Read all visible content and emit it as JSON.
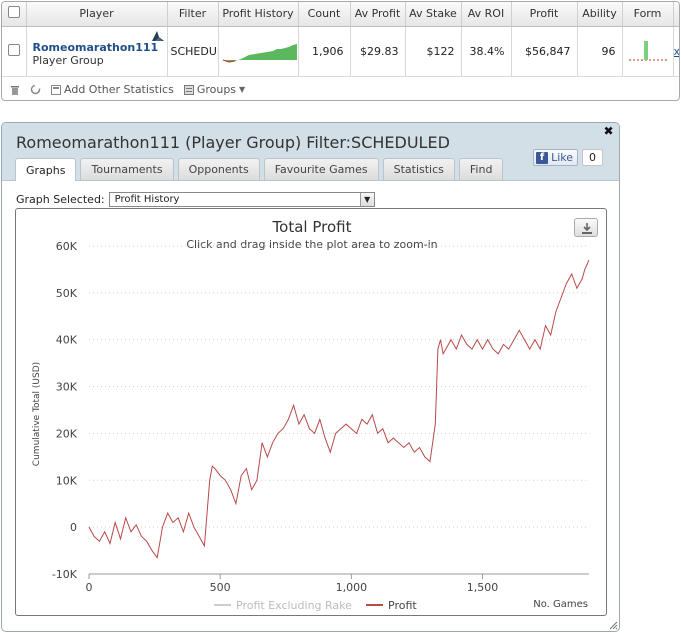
{
  "table": {
    "headers": [
      "Player",
      "Filter",
      "Profit History",
      "Count",
      "Av Profit",
      "Av Stake",
      "Av ROI",
      "Profit",
      "Ability",
      "Form"
    ],
    "row": {
      "player_name": "Romeomarathon111",
      "player_sub": "Player Group",
      "filter": "SCHEDULED",
      "count": "1,906",
      "av_profit": "$29.83",
      "av_stake": "$122",
      "av_roi": "38.4%",
      "profit": "$56,847",
      "ability": "96",
      "remove": "x"
    }
  },
  "toolbar": {
    "add_stats_label": "Add Other Statistics",
    "groups_label": "Groups"
  },
  "dialog": {
    "title": "Romeomarathon111 (Player Group) Filter:SCHEDULED",
    "tabs": [
      "Graphs",
      "Tournaments",
      "Opponents",
      "Favourite Games",
      "Statistics",
      "Find"
    ],
    "active_tab": "Graphs",
    "like_label": "Like",
    "like_count": "0",
    "graph_selected_label": "Graph Selected:",
    "graph_selected_value": "Profit History"
  },
  "colors": {
    "profit_line": "#b94a48",
    "excl_rake_line": "#cccccc",
    "sparkline_fill": "#5cb85c",
    "link_blue": "#1e4f8c"
  },
  "chart_data": {
    "type": "line",
    "title": "Total Profit",
    "subtitle": "Click and drag inside the plot area to zoom-in",
    "xlabel": "No. Games",
    "ylabel": "Cumulative Total (USD)",
    "xlim": [
      0,
      1906
    ],
    "ylim": [
      -10000,
      60000
    ],
    "x_ticks": [
      0,
      500,
      1000,
      1500
    ],
    "x_tick_labels": [
      "0",
      "500",
      "1,000",
      "1,500"
    ],
    "y_ticks": [
      -10000,
      0,
      10000,
      20000,
      30000,
      40000,
      50000,
      60000
    ],
    "y_tick_labels": [
      "-10K",
      "0",
      "10K",
      "20K",
      "30K",
      "40K",
      "50K",
      "60K"
    ],
    "grid": true,
    "legend_position": "bottom-center",
    "series": [
      {
        "name": "Profit Excluding Rake",
        "values": []
      },
      {
        "name": "Profit",
        "x": [
          0,
          20,
          40,
          60,
          80,
          100,
          120,
          140,
          160,
          180,
          200,
          220,
          240,
          260,
          280,
          300,
          320,
          340,
          360,
          380,
          400,
          420,
          440,
          460,
          470,
          480,
          500,
          520,
          540,
          560,
          580,
          600,
          620,
          640,
          660,
          680,
          700,
          720,
          740,
          760,
          780,
          800,
          820,
          840,
          860,
          880,
          900,
          920,
          940,
          960,
          980,
          1000,
          1020,
          1040,
          1060,
          1080,
          1100,
          1120,
          1140,
          1160,
          1180,
          1200,
          1220,
          1240,
          1260,
          1280,
          1300,
          1320,
          1330,
          1340,
          1350,
          1360,
          1380,
          1400,
          1420,
          1440,
          1460,
          1480,
          1500,
          1520,
          1540,
          1560,
          1580,
          1600,
          1620,
          1640,
          1660,
          1680,
          1700,
          1720,
          1740,
          1760,
          1780,
          1800,
          1820,
          1840,
          1860,
          1880,
          1890,
          1906
        ],
        "values": [
          0,
          -2000,
          -3000,
          -1000,
          -3500,
          1000,
          -2500,
          2000,
          -1000,
          500,
          -2000,
          -3000,
          -5000,
          -6500,
          0,
          3000,
          1000,
          2000,
          -1000,
          3000,
          0,
          -2000,
          -4000,
          10000,
          13000,
          12500,
          11000,
          10000,
          8000,
          5000,
          11000,
          12500,
          8000,
          10000,
          18000,
          15000,
          18000,
          20000,
          21000,
          23000,
          26000,
          22000,
          24000,
          21000,
          20000,
          23000,
          19000,
          16000,
          20000,
          21000,
          22000,
          21000,
          20000,
          23000,
          22000,
          24000,
          20000,
          21000,
          18000,
          19000,
          18000,
          17000,
          18000,
          16000,
          17000,
          15000,
          14000,
          22000,
          38000,
          40000,
          37000,
          38000,
          40000,
          38000,
          41000,
          39000,
          38000,
          40000,
          38000,
          40000,
          38000,
          37000,
          39000,
          38000,
          40000,
          42000,
          40000,
          38000,
          40000,
          38000,
          43000,
          41000,
          46000,
          49000,
          52000,
          54000,
          51000,
          53000,
          55000,
          57000
        ]
      }
    ]
  }
}
